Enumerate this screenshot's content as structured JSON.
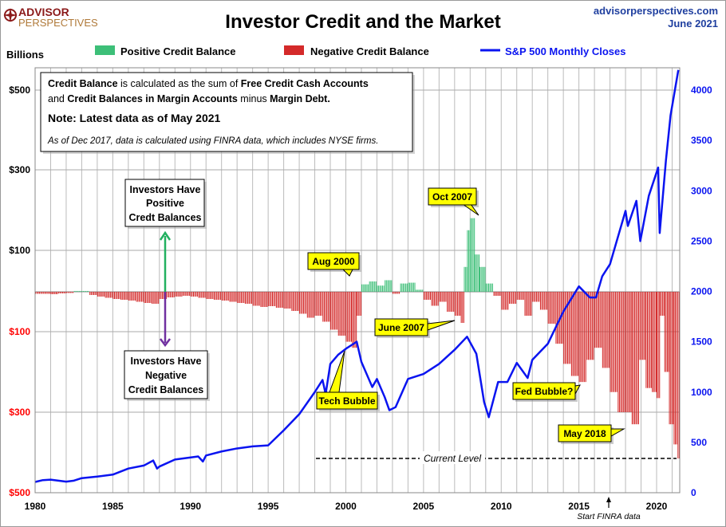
{
  "header": {
    "logo_line1": "ADVISOR",
    "logo_line2": "PERSPECTIVES",
    "title": "Investor Credit and the Market",
    "site": "advisorperspectives.com",
    "date": "June 2021"
  },
  "colors": {
    "positive": "#3dbf78",
    "negative": "#d42a2a",
    "sp500": "#0a14f0",
    "callout": "#ffff00"
  },
  "chart_data": {
    "type": "bar+line",
    "title": "Investor Credit and the Market",
    "ylabel_left": "Billions",
    "legend": [
      "Positive Credit Balance",
      "Negative Credit Balance",
      "S&P 500 Monthly Closes"
    ],
    "legend_placement": "top",
    "grid": true,
    "x_ticks": [
      "1980",
      "1985",
      "1990",
      "1995",
      "2000",
      "2005",
      "2010",
      "2015",
      "2020"
    ],
    "xlim": [
      1980,
      2021.5
    ],
    "y_left_ticks": [
      {
        "v": 500,
        "label": "$500"
      },
      {
        "v": 300,
        "label": "$300"
      },
      {
        "v": 100,
        "label": "$100"
      },
      {
        "v": -100,
        "label": "$100"
      },
      {
        "v": -300,
        "label": "$300"
      },
      {
        "v": -500,
        "label": "$500"
      }
    ],
    "y_right_ticks": [
      "0",
      "500",
      "1000",
      "1500",
      "2000",
      "2500",
      "3000",
      "3500",
      "4000"
    ],
    "y_right_lim": [
      0,
      4000
    ],
    "credit_balance": {
      "x": [
        1980,
        1980.5,
        1981,
        1981.5,
        1982,
        1982.5,
        1983,
        1983.5,
        1984,
        1984.5,
        1985,
        1985.5,
        1986,
        1986.5,
        1987,
        1987.5,
        1988,
        1988.5,
        1989,
        1989.5,
        1990,
        1990.5,
        1991,
        1991.5,
        1992,
        1992.5,
        1993,
        1993.5,
        1994,
        1994.5,
        1995,
        1995.5,
        1996,
        1996.5,
        1997,
        1997.5,
        1998,
        1998.5,
        1999,
        1999.5,
        2000,
        2000.4,
        2000.7,
        2001,
        2001.5,
        2002,
        2002.5,
        2003,
        2003.5,
        2004,
        2004.5,
        2005,
        2005.5,
        2006,
        2006.5,
        2007,
        2007.4,
        2007.6,
        2007.8,
        2008,
        2008.3,
        2008.6,
        2009,
        2009.5,
        2010,
        2010.5,
        2011,
        2011.5,
        2012,
        2012.5,
        2013,
        2013.5,
        2014,
        2014.5,
        2015,
        2015.5,
        2016,
        2016.5,
        2017,
        2017.5,
        2018,
        2018.4,
        2018.9,
        2019.3,
        2019.7,
        2020,
        2020.2,
        2020.5,
        2020.8,
        2021.1,
        2021.35
      ],
      "values": [
        -5,
        -5,
        -6,
        -4,
        -3,
        2,
        2,
        -8,
        -12,
        -15,
        -18,
        -20,
        -22,
        -25,
        -28,
        -30,
        -18,
        -14,
        -12,
        -10,
        -12,
        -15,
        -18,
        -20,
        -22,
        -25,
        -28,
        -30,
        -35,
        -38,
        -36,
        -40,
        -42,
        -48,
        -55,
        -65,
        -60,
        -75,
        -95,
        -110,
        -125,
        -140,
        -60,
        18,
        25,
        15,
        28,
        -5,
        20,
        22,
        5,
        -20,
        -35,
        -25,
        -50,
        -60,
        -78,
        60,
        150,
        180,
        90,
        60,
        20,
        -10,
        -45,
        -30,
        -20,
        -60,
        -25,
        -45,
        -80,
        -130,
        -180,
        -210,
        -225,
        -170,
        -140,
        -190,
        -250,
        -300,
        -300,
        -330,
        -170,
        -240,
        -250,
        -265,
        -60,
        -200,
        -330,
        -380,
        -415
      ]
    },
    "sp500_monthly_closes": {
      "x": [
        1980,
        1980.5,
        1981,
        1981.5,
        1982,
        1982.5,
        1983,
        1984,
        1985,
        1986,
        1987,
        1987.6,
        1987.85,
        1988,
        1989,
        1990.5,
        1990.8,
        1991,
        1992,
        1993,
        1994,
        1995,
        1996,
        1997,
        1998,
        1998.5,
        1998.7,
        1999,
        1999.5,
        2000,
        2000.7,
        2001,
        2001.7,
        2002,
        2002.5,
        2002.8,
        2003.2,
        2004,
        2005,
        2006,
        2007,
        2007.8,
        2008.4,
        2008.9,
        2009.2,
        2009.8,
        2010.4,
        2011,
        2011.7,
        2012,
        2013,
        2014,
        2015,
        2015.7,
        2016.1,
        2016.5,
        2017,
        2018,
        2018.15,
        2018.7,
        2018.95,
        2019.5,
        2020.1,
        2020.2,
        2020.6,
        2020.9,
        2021.4
      ],
      "values": [
        107,
        125,
        130,
        120,
        110,
        120,
        145,
        160,
        180,
        240,
        270,
        320,
        240,
        260,
        330,
        360,
        310,
        370,
        410,
        440,
        460,
        470,
        620,
        780,
        1000,
        1120,
        980,
        1280,
        1370,
        1430,
        1500,
        1300,
        1050,
        1130,
        950,
        820,
        850,
        1130,
        1180,
        1280,
        1420,
        1550,
        1380,
        900,
        750,
        1100,
        1100,
        1290,
        1140,
        1320,
        1480,
        1800,
        2050,
        1940,
        1940,
        2150,
        2270,
        2800,
        2650,
        2900,
        2500,
        2950,
        3230,
        2580,
        3300,
        3750,
        4200
      ]
    },
    "annotations": {
      "note_box": {
        "p1": [
          "Credit Balance",
          " is calculated as the sum of ",
          "Free Credit Cash Accounts"
        ],
        "p2": [
          "and ",
          "Credit Balances in Margin Accounts",
          " minus ",
          "Margin Debt."
        ],
        "note": "Note: Latest data as of May 2021",
        "finra": "As of Dec 2017, data is calculated using FINRA data, which includes NYSE firms."
      },
      "positive_box": [
        "Investors Have",
        "Positive",
        "Credt Balances"
      ],
      "negative_box": [
        "Investors Have",
        "Negative",
        "Credit Balances"
      ],
      "callouts": {
        "aug2000": "Aug 2000",
        "oct2007": "Oct 2007",
        "jun2007": "June 2007",
        "tech": "Tech Bubble",
        "fed": "Fed Bubble?",
        "may2018": "May 2018"
      },
      "current_level": "Current Level",
      "finra_start": "Start FINRA data"
    }
  }
}
